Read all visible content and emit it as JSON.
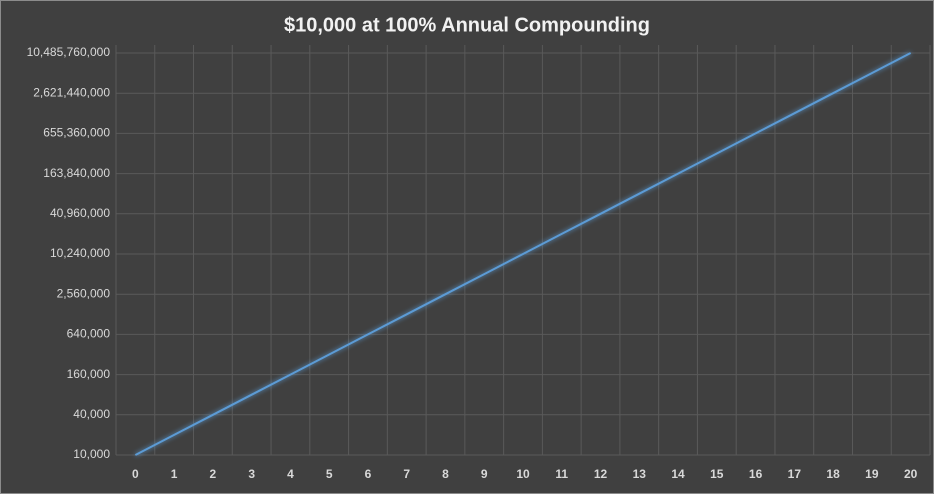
{
  "chart_data": {
    "type": "line",
    "title": "$10,000 at 100% Annual Compounding",
    "categories": [
      "0",
      "1",
      "2",
      "3",
      "4",
      "5",
      "6",
      "7",
      "8",
      "9",
      "10",
      "11",
      "12",
      "13",
      "14",
      "15",
      "16",
      "17",
      "18",
      "19",
      "20"
    ],
    "series": [
      {
        "color": "#5b9bd5",
        "values": [
          10000,
          20000,
          40000,
          80000,
          160000,
          320000,
          640000,
          1280000,
          2560000,
          5120000,
          10240000,
          20480000,
          40960000,
          81920000,
          163840000,
          327680000,
          655360000,
          1310720000,
          2621440000,
          5242880000,
          10485760000
        ]
      }
    ],
    "log_scale": true,
    "grid": true,
    "ylim": [
      10000,
      10485760000
    ],
    "yticks": [
      {
        "value": 10000,
        "label": "10,000"
      },
      {
        "value": 40000,
        "label": "40,000"
      },
      {
        "value": 160000,
        "label": "160,000"
      },
      {
        "value": 640000,
        "label": "640,000"
      },
      {
        "value": 2560000,
        "label": "2,560,000"
      },
      {
        "value": 10240000,
        "label": "10,240,000"
      },
      {
        "value": 40960000,
        "label": "40,960,000"
      },
      {
        "value": 163840000,
        "label": "163,840,000"
      },
      {
        "value": 655360000,
        "label": "655,360,000"
      },
      {
        "value": 2621440000,
        "label": "2,621,440,000"
      },
      {
        "value": 10485760000,
        "label": "10,485,760,000"
      }
    ]
  }
}
